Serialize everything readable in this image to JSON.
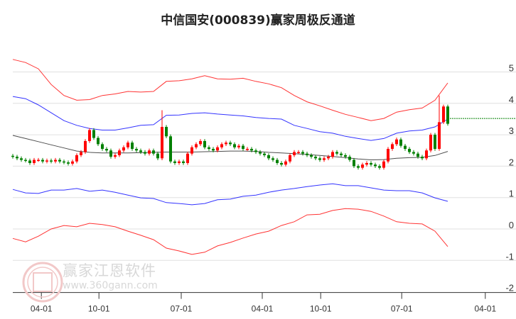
{
  "chart_data": {
    "type": "line",
    "title": "中信国安(000839)赢家周极反通道",
    "ylim": [
      -2,
      5.4
    ],
    "yticks": [
      5,
      4,
      3,
      2,
      1,
      0,
      -1,
      -2
    ],
    "grid": true,
    "xlim": [
      0,
      118
    ],
    "xticks": [
      {
        "label": "04-01",
        "x": 6.7
      },
      {
        "label": "10-01",
        "x": 20.2
      },
      {
        "label": "07-01",
        "x": 39.5
      },
      {
        "label": "04-01",
        "x": 58.5
      },
      {
        "label": "10-01",
        "x": 72.2
      },
      {
        "label": "07-01",
        "x": 91.2
      },
      {
        "label": "04-01",
        "x": 110.8
      }
    ],
    "band_step": 3,
    "bands": [
      {
        "name": "upper-outer",
        "color": "#ff0000",
        "values": [
          5.4,
          5.3,
          5.1,
          4.6,
          4.25,
          4.1,
          4.12,
          4.25,
          4.3,
          4.38,
          4.36,
          4.38,
          4.7,
          4.72,
          4.78,
          4.88,
          4.78,
          4.77,
          4.8,
          4.7,
          4.62,
          4.5,
          4.25,
          4.05,
          3.92,
          3.78,
          3.65,
          3.55,
          3.45,
          3.52,
          3.72,
          3.8,
          3.85,
          4.1,
          4.65
        ]
      },
      {
        "name": "upper-inner",
        "color": "#0000ff",
        "values": [
          4.22,
          4.15,
          3.95,
          3.7,
          3.45,
          3.3,
          3.2,
          3.15,
          3.15,
          3.22,
          3.3,
          3.32,
          3.62,
          3.63,
          3.68,
          3.7,
          3.66,
          3.63,
          3.6,
          3.55,
          3.52,
          3.5,
          3.3,
          3.2,
          3.1,
          3.05,
          2.95,
          2.88,
          2.82,
          2.88,
          3.05,
          3.12,
          3.15,
          3.25,
          3.5
        ]
      },
      {
        "name": "middle",
        "color": "#222222",
        "values": [
          2.98,
          2.88,
          2.78,
          2.68,
          2.58,
          2.48,
          2.44,
          2.42,
          2.42,
          2.42,
          2.43,
          2.44,
          2.45,
          2.45,
          2.45,
          2.46,
          2.47,
          2.48,
          2.48,
          2.47,
          2.44,
          2.42,
          2.4,
          2.37,
          2.34,
          2.31,
          2.27,
          2.23,
          2.2,
          2.21,
          2.25,
          2.27,
          2.28,
          2.34,
          2.47
        ]
      },
      {
        "name": "lower-inner",
        "color": "#0000ff",
        "values": [
          1.26,
          1.15,
          1.13,
          1.24,
          1.24,
          1.29,
          1.2,
          1.24,
          1.17,
          1.08,
          0.99,
          0.97,
          0.84,
          0.81,
          0.77,
          0.81,
          0.93,
          0.95,
          1.04,
          1.08,
          1.17,
          1.24,
          1.29,
          1.35,
          1.4,
          1.44,
          1.38,
          1.38,
          1.31,
          1.24,
          1.22,
          1.22,
          1.15,
          0.99,
          0.88
        ]
      },
      {
        "name": "lower-outer",
        "color": "#ff0000",
        "values": [
          -0.3,
          -0.41,
          -0.23,
          0.0,
          0.11,
          0.07,
          0.18,
          0.14,
          0.07,
          -0.07,
          -0.2,
          -0.34,
          -0.61,
          -0.7,
          -0.81,
          -0.74,
          -0.54,
          -0.43,
          -0.29,
          -0.16,
          -0.07,
          0.11,
          0.23,
          0.45,
          0.47,
          0.59,
          0.65,
          0.63,
          0.56,
          0.41,
          0.23,
          0.18,
          0.16,
          -0.07,
          -0.56
        ]
      }
    ],
    "candles": {
      "up_color": "#ff0000",
      "down_color": "#008000",
      "close": [
        2.3,
        2.25,
        2.2,
        2.18,
        2.1,
        2.2,
        2.2,
        2.15,
        2.18,
        2.15,
        2.2,
        2.15,
        2.12,
        2.08,
        2.15,
        2.35,
        2.45,
        2.8,
        3.15,
        2.9,
        2.7,
        2.55,
        2.5,
        2.3,
        2.35,
        2.5,
        2.6,
        2.75,
        2.55,
        2.5,
        2.45,
        2.4,
        2.5,
        2.4,
        2.25,
        3.25,
        2.95,
        2.15,
        2.1,
        2.15,
        2.1,
        2.4,
        2.6,
        2.7,
        2.8,
        2.6,
        2.55,
        2.5,
        2.6,
        2.7,
        2.75,
        2.7,
        2.6,
        2.65,
        2.55,
        2.55,
        2.5,
        2.45,
        2.4,
        2.35,
        2.25,
        2.2,
        2.1,
        2.05,
        2.15,
        2.35,
        2.45,
        2.45,
        2.4,
        2.35,
        2.3,
        2.25,
        2.2,
        2.25,
        2.3,
        2.45,
        2.4,
        2.35,
        2.3,
        2.2,
        2.0,
        1.95,
        2.05,
        2.1,
        2.05,
        2.0,
        1.95,
        2.15,
        2.55,
        2.7,
        2.85,
        2.65,
        2.55,
        2.45,
        2.4,
        2.3,
        2.25,
        2.5,
        3.0,
        2.55,
        3.4,
        3.9,
        3.35
      ],
      "high_overrides": {
        "35": 3.78,
        "100": 4.25
      }
    },
    "last_price_line": 3.52,
    "last_price_color": "#008000"
  },
  "watermark": {
    "name": "赢家江恩软件",
    "url": "www.360gann.com",
    "seal": "江赢恩家"
  }
}
